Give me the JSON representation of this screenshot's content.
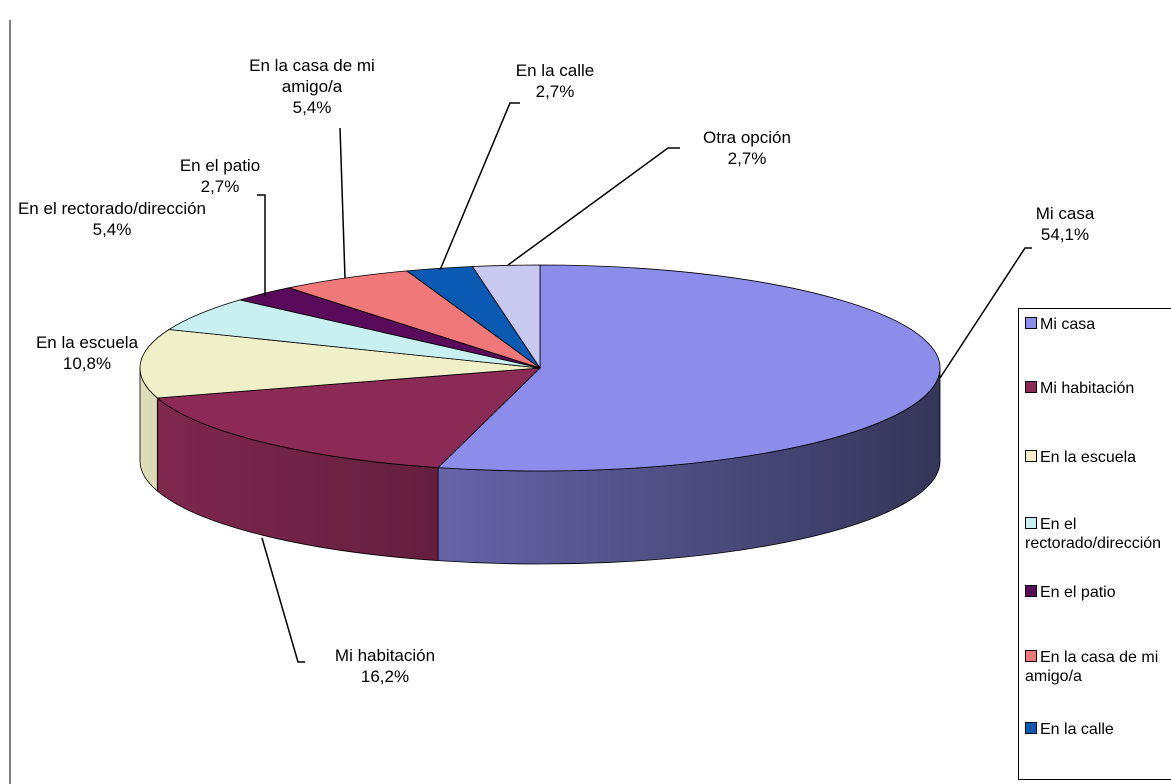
{
  "chart_data": {
    "type": "pie",
    "categories": [
      "Mi casa",
      "Mi habitación",
      "En la escuela",
      "En el rectorado/dirección",
      "En el patio",
      "En la casa de mi amigo/a",
      "En la calle",
      "Otra opción"
    ],
    "values": [
      54.1,
      16.2,
      10.8,
      5.4,
      2.7,
      5.4,
      2.7,
      2.7
    ],
    "value_labels": [
      "54,1%",
      "16,2%",
      "10,8%",
      "5,4%",
      "2,7%",
      "5,4%",
      "2,7%",
      "2,7%"
    ],
    "colors": [
      "#8c8ceb",
      "#8b2b55",
      "#f0f0c8",
      "#c8f0f0",
      "#5a0a5a",
      "#f07878",
      "#0a5ab4",
      "#c8c8f0"
    ],
    "legend": "right"
  }
}
